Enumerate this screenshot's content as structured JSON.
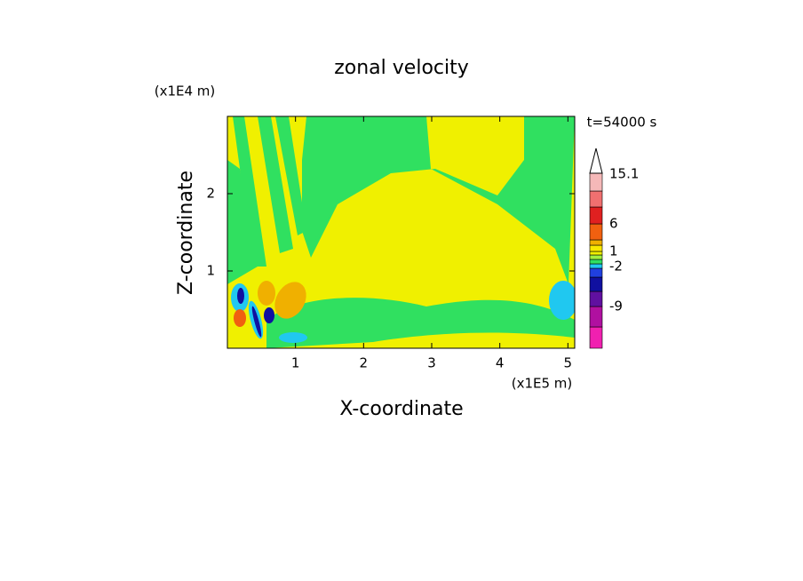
{
  "chart_data": {
    "type": "contour",
    "title": "zonal velocity",
    "x_label": "X-coordinate",
    "y_label": "Z-coordinate",
    "x_unit": "(x1E5 m)",
    "y_unit": "(x1E4 m)",
    "time_label": "t=54000 s",
    "xlim": [
      0,
      5.1
    ],
    "ylim": [
      0,
      3
    ],
    "xticks": [
      1,
      2,
      3,
      4,
      5
    ],
    "yticks": [
      1,
      2
    ],
    "colorbar": {
      "colors": [
        "#f020b0",
        "#b010a0",
        "#6010a0",
        "#1010a0",
        "#2040e0",
        "#20c8f0",
        "#30e060",
        "#a0f040",
        "#f0f000",
        "#f8e800",
        "#f0b000",
        "#f06010",
        "#e02020",
        "#f07070",
        "#f5b8b8",
        "#ffffff"
      ],
      "ticks": [
        -9,
        -2,
        1,
        6,
        15.1
      ]
    }
  }
}
